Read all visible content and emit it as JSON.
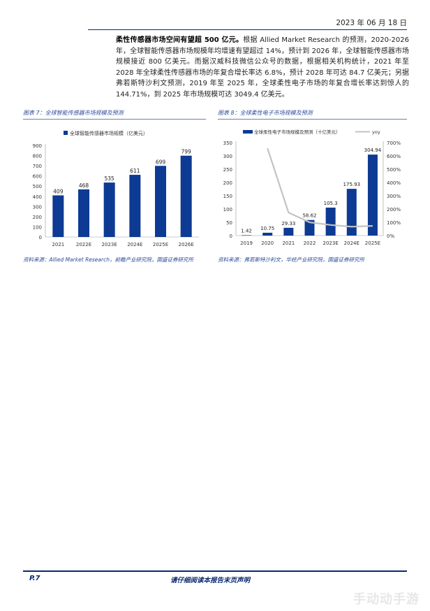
{
  "header": {
    "date": "2023 年 06 月 18 日"
  },
  "intro": {
    "bold_lead": "柔性传感器市场空间有望超 500 亿元。",
    "body": "根据 Allied Market Research 的预测，2020-2026 年，全球智能传感器市场规模年均增速有望超过 14%，预计到 2026 年，全球智能传感器市场规模接近 800 亿美元。而据汉威科技微信公众号的数据，根据相关机构统计，2021 年至 2028 年全球柔性传感器市场的年复合增长率达 6.8%，预计 2028 年可达 84.7 亿美元；另据弗若斯特沙利文预测，2019 年至 2025 年，全球柔性电子市场的年复合增长率达到惊人的 144.71%，到 2025 年市场规模可达 3049.4 亿美元。"
  },
  "figure7": {
    "caption": "图表 7：全球智能传感器市场规模及预测",
    "source": "资料来源：Allied Market Research，前瞻产业研究院，国盛证券研究所"
  },
  "figure8": {
    "caption": "图表 8：全球柔性电子市场规模及预测",
    "source": "资料来源：弗若斯特沙利文，华经产业研究院，国盛证券研究所"
  },
  "chart_data": [
    {
      "type": "bar",
      "legend": "全球智能传感器市场规模（亿美元）",
      "categories": [
        "2021",
        "2022E",
        "2023E",
        "2024E",
        "2025E",
        "2026E"
      ],
      "values": [
        409,
        468,
        535,
        611,
        699,
        799
      ],
      "value_labels": [
        "409",
        "468",
        "535",
        "611",
        "699",
        "799"
      ],
      "ylim": [
        0,
        900
      ],
      "yticks": [
        "0",
        "100",
        "200",
        "300",
        "400",
        "500",
        "600",
        "700",
        "800",
        "900"
      ],
      "color": "#0d3a93",
      "grid": false,
      "legend_position": "top"
    },
    {
      "type": "bar+line",
      "categories": [
        "2019",
        "2020",
        "2021",
        "2022",
        "2023E",
        "2024E",
        "2025E"
      ],
      "series": [
        {
          "name": "全球柔性电子市场规模及预测（十亿美元）",
          "type": "bar",
          "values": [
            1.42,
            10.75,
            29.33,
            58.62,
            105.3,
            175.93,
            304.94
          ],
          "value_labels": [
            "1.42",
            "10.75",
            "29.33",
            "58.62",
            "105.3",
            "175.93",
            "304.94"
          ],
          "axis": "left",
          "color": "#0d3a93"
        },
        {
          "name": "yoy",
          "type": "line",
          "values": [
            null,
            657,
            173,
            100,
            80,
            67,
            73
          ],
          "axis": "right",
          "color": "#c3c3c3"
        }
      ],
      "ylim_left": [
        0,
        350
      ],
      "yticks_left": [
        "0",
        "50",
        "100",
        "150",
        "200",
        "250",
        "300",
        "350"
      ],
      "ylim_right": [
        0,
        700
      ],
      "yticks_right": [
        "0%",
        "100%",
        "200%",
        "300%",
        "400%",
        "500%",
        "600%",
        "700%"
      ],
      "grid": false,
      "legend_position": "top"
    }
  ],
  "footer": {
    "page": "P.7",
    "note": "请仔细阅读本报告末页声明"
  },
  "watermark": "手动动手游"
}
